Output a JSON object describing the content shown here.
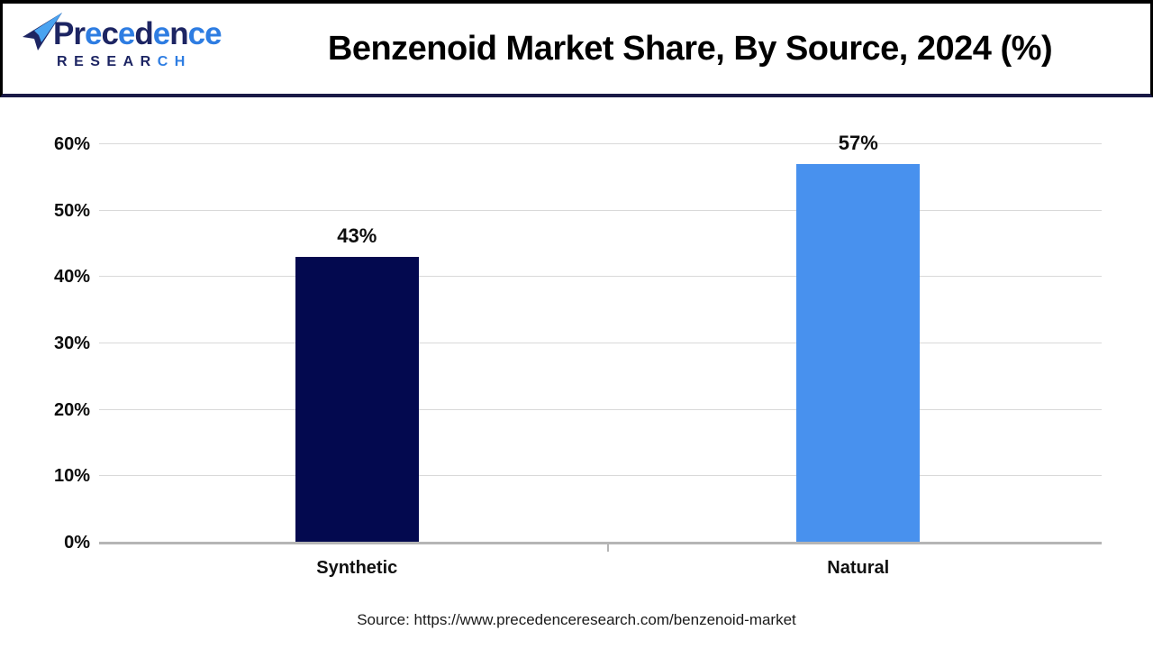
{
  "header": {
    "logo": {
      "brand": "Precedence",
      "brand_letter_colors": [
        "navy",
        "navy",
        "blue",
        "navy",
        "blue",
        "navy",
        "blue",
        "navy",
        "blue",
        "blue"
      ],
      "sub": "RESEARCH",
      "sub_letter_colors": [
        "navy",
        "navy",
        "navy",
        "navy",
        "navy",
        "navy",
        "blue",
        "blue"
      ],
      "navy": "#1d2563",
      "blue": "#2e7de2"
    },
    "title": "Benzenoid Market Share, By Source, 2024 (%)"
  },
  "chart_data": {
    "type": "bar",
    "title": "Benzenoid Market Share, By Source, 2024 (%)",
    "categories": [
      "Synthetic",
      "Natural"
    ],
    "values": [
      43,
      57
    ],
    "value_labels": [
      "43%",
      "57%"
    ],
    "bar_colors": [
      "#03094f",
      "#4891ee"
    ],
    "xlabel": "",
    "ylabel": "",
    "ylim": [
      0,
      60
    ],
    "yticks": [
      0,
      10,
      20,
      30,
      40,
      50,
      60
    ],
    "ytick_labels": [
      "0%",
      "10%",
      "20%",
      "30%",
      "40%",
      "50%",
      "60%"
    ],
    "grid": true,
    "legend": false,
    "gridline_color": "#d9d9d9",
    "axis_color": "#b5b5b5"
  },
  "footer": {
    "source_text": "Source: https://www.precedenceresearch.com/benzenoid-market"
  }
}
